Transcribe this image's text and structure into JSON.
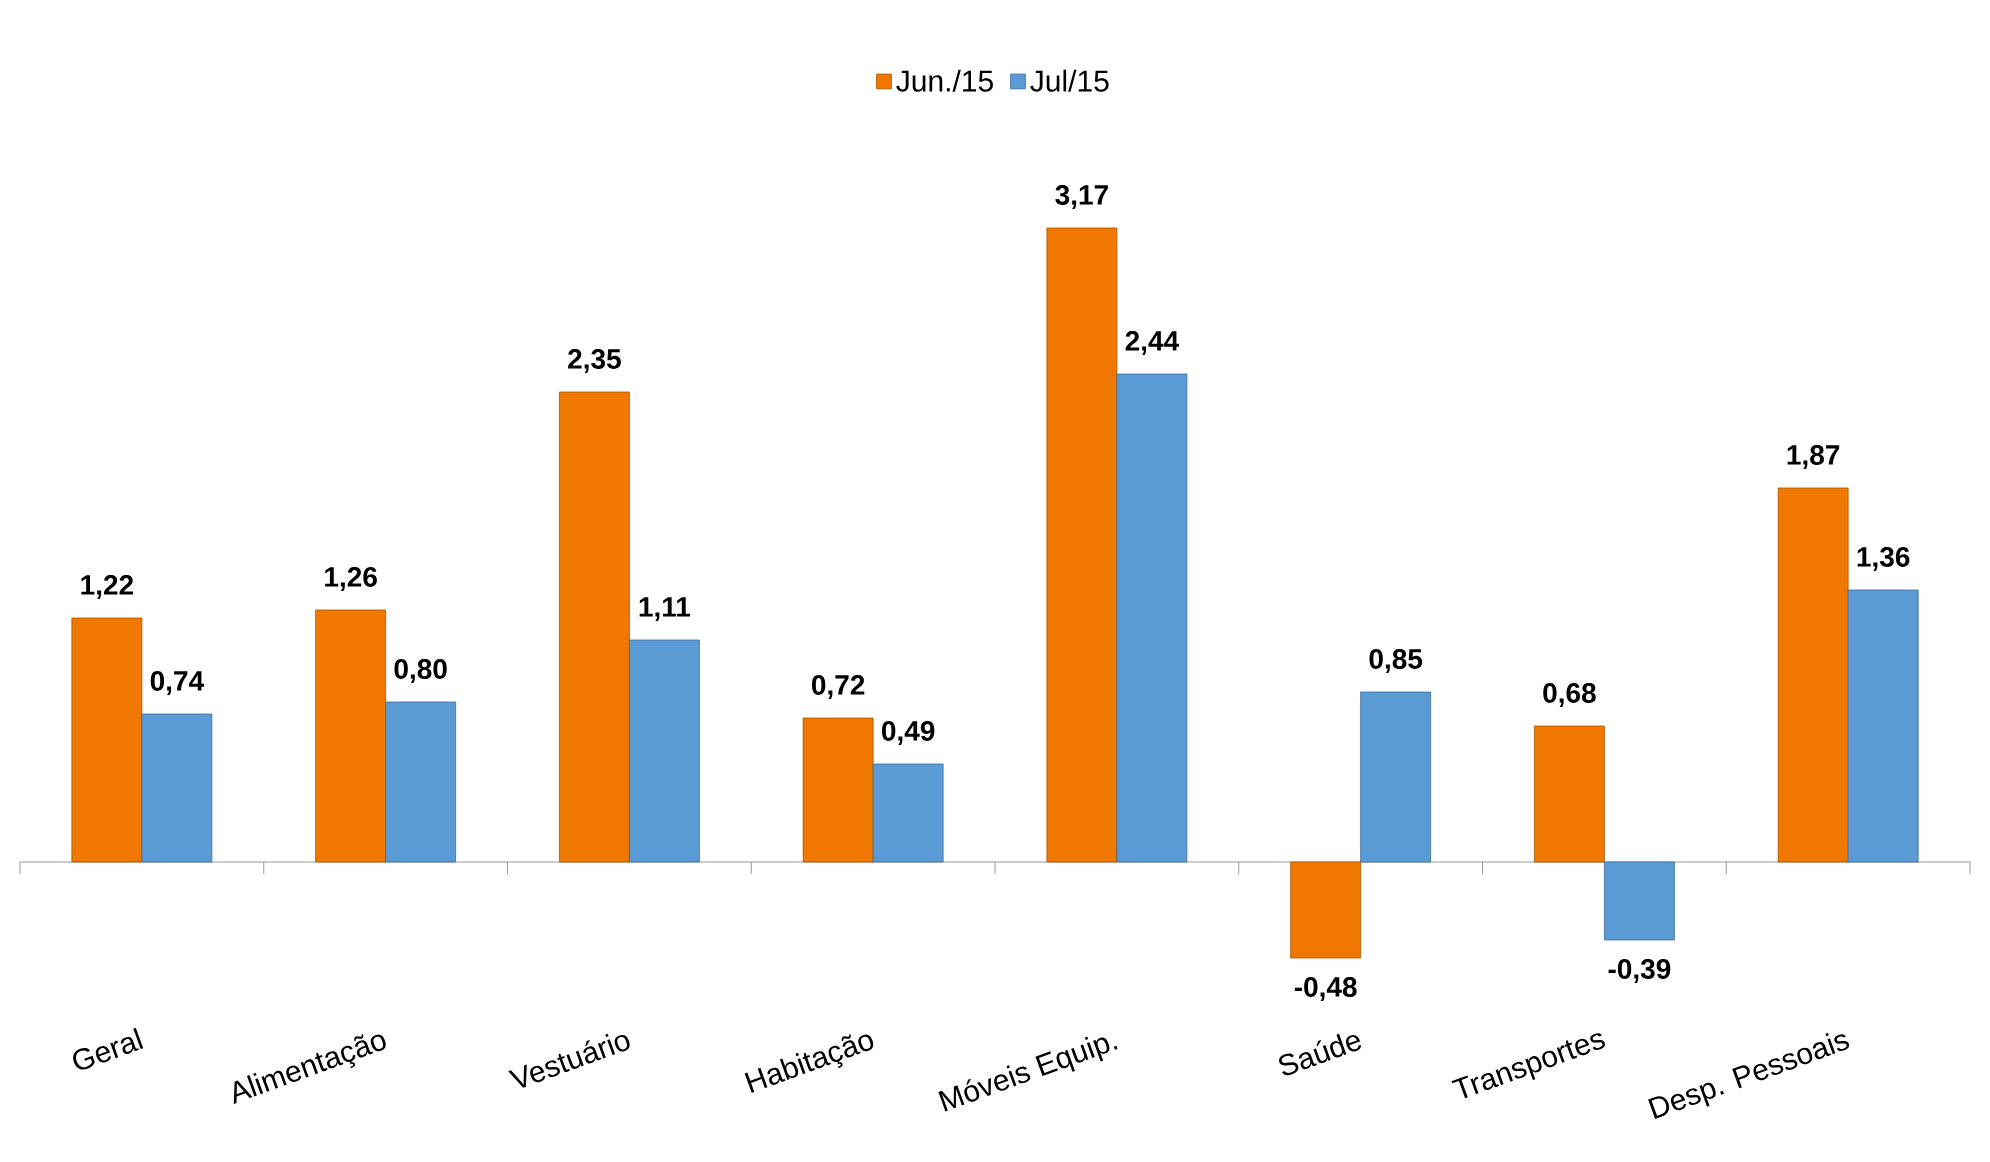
{
  "chart_data": {
    "type": "bar",
    "categories": [
      "Geral",
      "Alimentação",
      "Vestuário",
      "Habitação",
      "Móveis Equip.",
      "Saúde",
      "Transportes",
      "Desp. Pessoais"
    ],
    "series": [
      {
        "name": "Jun./15",
        "color": "#f07800",
        "values": [
          1.22,
          1.26,
          2.35,
          0.72,
          3.17,
          -0.48,
          0.68,
          1.87
        ],
        "value_labels": [
          "1,22",
          "1,26",
          "2,35",
          "0,72",
          "3,17",
          "-0,48",
          "0,68",
          "1,87"
        ]
      },
      {
        "name": "Jul/15",
        "color": "#5b9bd5",
        "values": [
          0.74,
          0.8,
          1.11,
          0.49,
          2.44,
          0.85,
          -0.39,
          1.36
        ],
        "value_labels": [
          "0,74",
          "0,80",
          "1,11",
          "0,49",
          "2,44",
          "0,85",
          "-0,39",
          "1,36"
        ]
      }
    ],
    "legend": "top"
  }
}
